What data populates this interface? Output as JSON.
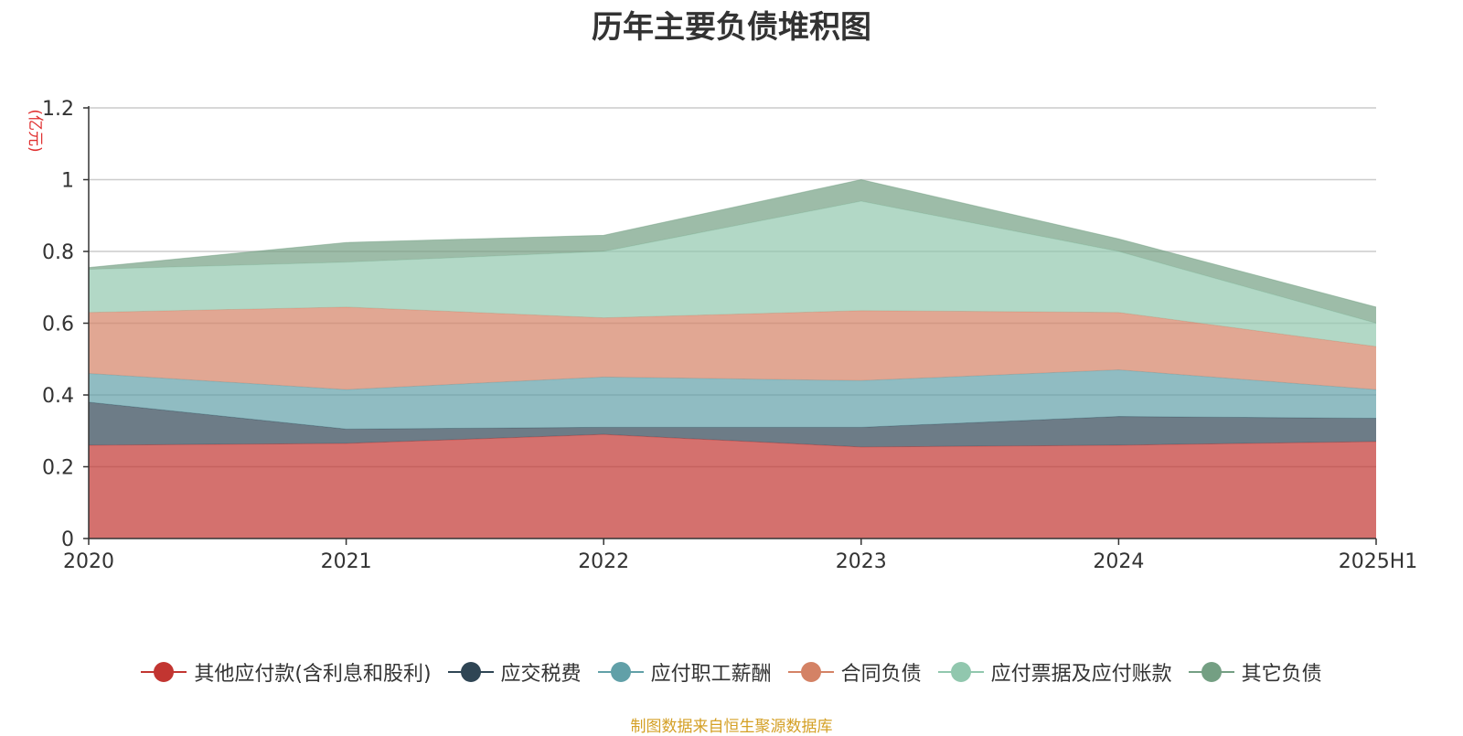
{
  "chart_data": {
    "type": "area",
    "stacked": true,
    "title": "历年主要负债堆积图",
    "ylabel": "(亿元)",
    "xlabel": "",
    "categories": [
      "2020",
      "2021",
      "2022",
      "2023",
      "2024",
      "2025H1"
    ],
    "ylim": [
      0,
      1.2
    ],
    "yticks": [
      "0",
      "0.2",
      "0.4",
      "0.6",
      "0.8",
      "1",
      "1.2"
    ],
    "grid": true,
    "legend_position": "bottom",
    "series": [
      {
        "name": "其他应付款(含利息和股利)",
        "color": "#c23531",
        "values": [
          0.26,
          0.265,
          0.29,
          0.255,
          0.26,
          0.27
        ]
      },
      {
        "name": "应交税费",
        "color": "#2f4554",
        "values": [
          0.12,
          0.04,
          0.02,
          0.055,
          0.08,
          0.065
        ]
      },
      {
        "name": "应付职工薪酬",
        "color": "#61a0a8",
        "values": [
          0.08,
          0.11,
          0.14,
          0.13,
          0.13,
          0.08
        ]
      },
      {
        "name": "合同负债",
        "color": "#d48265",
        "values": [
          0.17,
          0.23,
          0.165,
          0.195,
          0.16,
          0.12
        ]
      },
      {
        "name": "应付票据及应付账款",
        "color": "#91c7ae",
        "values": [
          0.12,
          0.125,
          0.185,
          0.305,
          0.17,
          0.065
        ]
      },
      {
        "name": "其它负债",
        "color": "#749f83",
        "values": [
          0.005,
          0.055,
          0.045,
          0.06,
          0.035,
          0.045
        ]
      }
    ]
  },
  "source_text": "制图数据来自恒生聚源数据库"
}
